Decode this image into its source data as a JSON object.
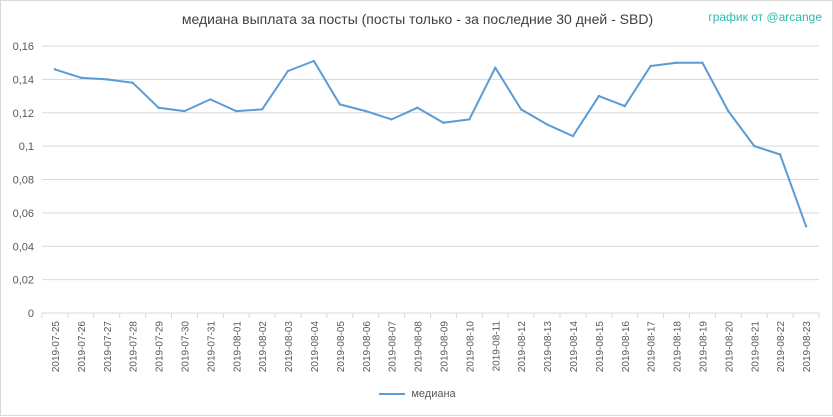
{
  "title": "медиана выплата за посты  (посты только - за последние 30 дней - SBD)",
  "credit": "график от @arcange",
  "colors": {
    "line": "#5b9bd5",
    "grid": "#d9d9d9",
    "text": "#595959"
  },
  "chart_data": {
    "type": "line",
    "title": "медиана выплата за посты  (посты только - за последние 30 дней - SBD)",
    "xlabel": "",
    "ylabel": "",
    "ylim": [
      0,
      0.16
    ],
    "yticks": [
      "0",
      "0,02",
      "0,04",
      "0,06",
      "0,08",
      "0,1",
      "0,12",
      "0,14",
      "0,16"
    ],
    "grid": true,
    "legend_position": "bottom",
    "categories": [
      "2019-07-25",
      "2019-07-26",
      "2019-07-27",
      "2019-07-28",
      "2019-07-29",
      "2019-07-30",
      "2019-07-31",
      "2019-08-01",
      "2019-08-02",
      "2019-08-03",
      "2019-08-04",
      "2019-08-05",
      "2019-08-06",
      "2019-08-07",
      "2019-08-08",
      "2019-08-09",
      "2019-08-10",
      "2019-08-11",
      "2019-08-12",
      "2019-08-13",
      "2019-08-14",
      "2019-08-15",
      "2019-08-16",
      "2019-08-17",
      "2019-08-18",
      "2019-08-19",
      "2019-08-20",
      "2019-08-21",
      "2019-08-22",
      "2019-08-23"
    ],
    "series": [
      {
        "name": "медиана",
        "values": [
          0.146,
          0.141,
          0.14,
          0.138,
          0.123,
          0.121,
          0.128,
          0.121,
          0.122,
          0.145,
          0.151,
          0.125,
          0.121,
          0.116,
          0.123,
          0.114,
          0.116,
          0.147,
          0.122,
          0.113,
          0.106,
          0.13,
          0.124,
          0.148,
          0.15,
          0.15,
          0.121,
          0.1,
          0.095,
          0.052
        ]
      }
    ]
  }
}
